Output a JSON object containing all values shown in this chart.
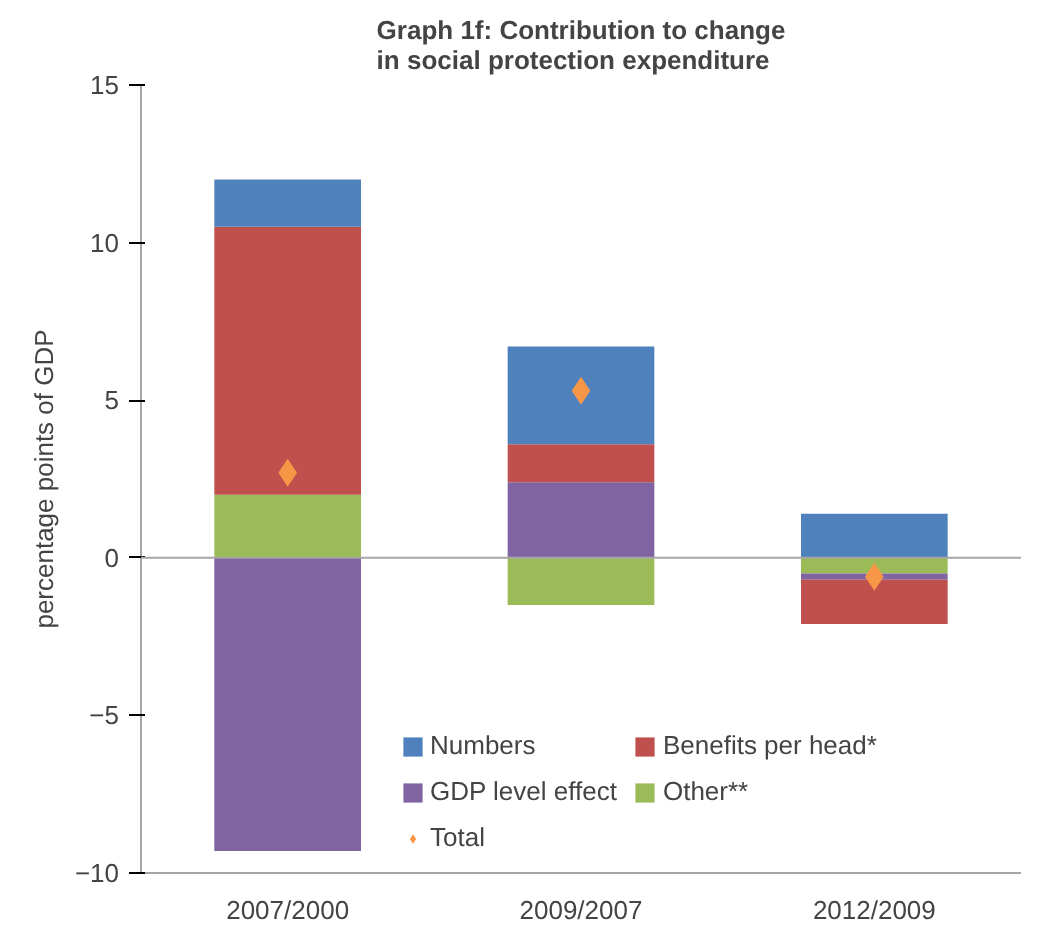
{
  "chart_data": {
    "type": "bar",
    "stacked": true,
    "title": "Graph 1f: Contribution to change in social protection expenditure",
    "ylabel": "percentage points of GDP",
    "categories": [
      "2007/2000",
      "2009/2007",
      "2012/2009"
    ],
    "series": [
      {
        "name": "Other**",
        "color": "#9bbb59",
        "values": [
          2.0,
          -1.5,
          -0.5
        ]
      },
      {
        "name": "GDP level effect",
        "color": "#8064a2",
        "values": [
          -9.3,
          2.4,
          -0.2
        ]
      },
      {
        "name": "Benefits per head*",
        "color": "#c0504d",
        "values": [
          8.5,
          1.2,
          -1.4
        ]
      },
      {
        "name": "Numbers",
        "color": "#4f81bd",
        "values": [
          1.5,
          3.1,
          1.4
        ]
      },
      {
        "name": "Total",
        "color": "#f79646",
        "type": "scatter",
        "marker": "diamond",
        "values": [
          2.7,
          5.3,
          -0.6
        ]
      }
    ],
    "ylim": [
      -10,
      15
    ],
    "yticks": [
      -10,
      -5,
      0,
      5,
      10,
      15
    ],
    "grid": false,
    "legend": "bottom",
    "ref_lines": [
      {
        "axis": "y",
        "value": 0,
        "color": "#a6a6a6"
      }
    ]
  }
}
